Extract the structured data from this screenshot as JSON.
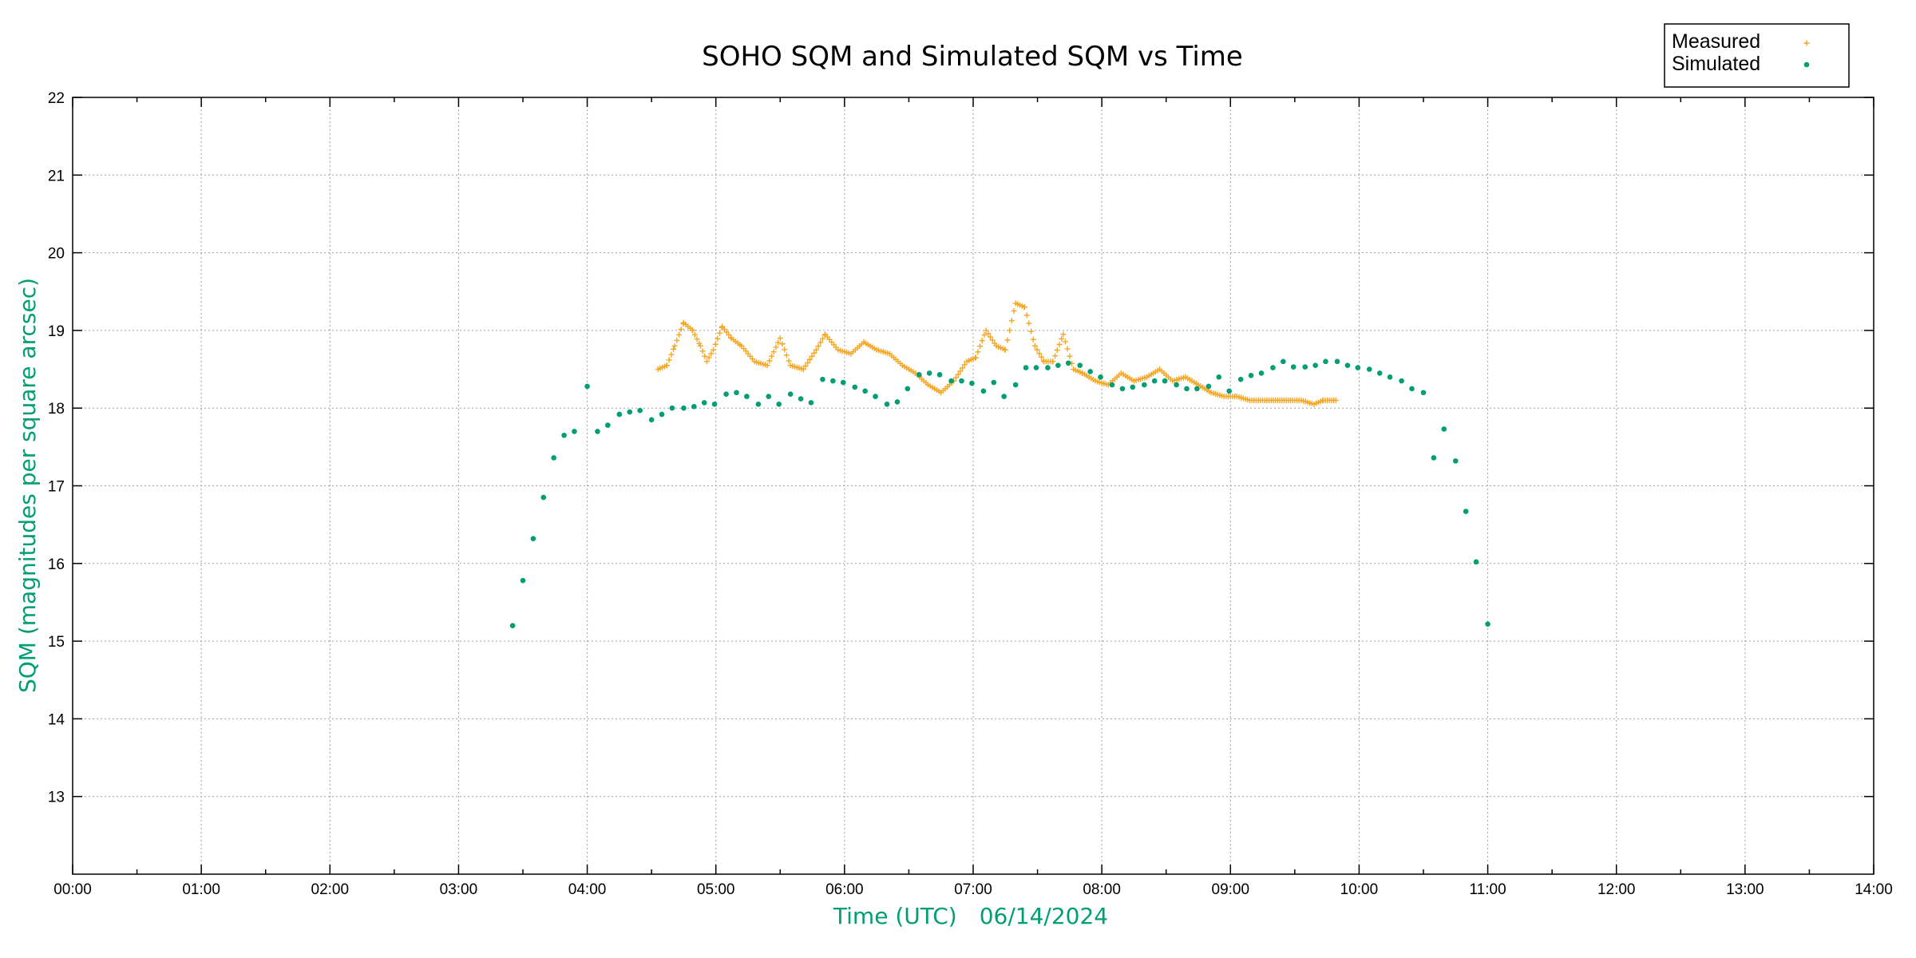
{
  "chart_data": {
    "type": "scatter",
    "title": "SOHO SQM and Simulated SQM vs Time",
    "xlabel": "Time (UTC)",
    "xlabel_date": "06/14/2024",
    "ylabel": "SQM (magnitudes per square arcsec)",
    "xlim": [
      0,
      14
    ],
    "ylim": [
      12,
      22
    ],
    "x_unit": "hours UTC",
    "x_ticks": [
      "00:00",
      "01:00",
      "02:00",
      "03:00",
      "04:00",
      "05:00",
      "06:00",
      "07:00",
      "08:00",
      "09:00",
      "10:00",
      "11:00",
      "12:00",
      "13:00",
      "14:00"
    ],
    "y_ticks": [
      "13",
      "14",
      "15",
      "16",
      "17",
      "18",
      "19",
      "20",
      "21",
      "22"
    ],
    "grid": true,
    "legend_position": "top-right",
    "colors": {
      "measured": "#f5a623",
      "simulated": "#009e73",
      "axis_label": "#009e73"
    },
    "series": [
      {
        "name": "Measured",
        "marker": "plus",
        "control_points": [
          [
            4.55,
            18.5
          ],
          [
            4.62,
            18.55
          ],
          [
            4.68,
            18.8
          ],
          [
            4.75,
            19.1
          ],
          [
            4.82,
            19.0
          ],
          [
            4.88,
            18.8
          ],
          [
            4.93,
            18.6
          ],
          [
            4.98,
            18.75
          ],
          [
            5.05,
            19.05
          ],
          [
            5.12,
            18.9
          ],
          [
            5.2,
            18.8
          ],
          [
            5.3,
            18.6
          ],
          [
            5.4,
            18.55
          ],
          [
            5.5,
            18.9
          ],
          [
            5.58,
            18.55
          ],
          [
            5.68,
            18.5
          ],
          [
            5.78,
            18.75
          ],
          [
            5.85,
            18.95
          ],
          [
            5.95,
            18.75
          ],
          [
            6.05,
            18.7
          ],
          [
            6.15,
            18.85
          ],
          [
            6.25,
            18.75
          ],
          [
            6.35,
            18.7
          ],
          [
            6.45,
            18.55
          ],
          [
            6.55,
            18.45
          ],
          [
            6.65,
            18.3
          ],
          [
            6.75,
            18.2
          ],
          [
            6.85,
            18.35
          ],
          [
            6.95,
            18.6
          ],
          [
            7.02,
            18.65
          ],
          [
            7.1,
            19.0
          ],
          [
            7.18,
            18.8
          ],
          [
            7.25,
            18.75
          ],
          [
            7.33,
            19.35
          ],
          [
            7.4,
            19.3
          ],
          [
            7.48,
            18.8
          ],
          [
            7.55,
            18.6
          ],
          [
            7.62,
            18.6
          ],
          [
            7.7,
            18.95
          ],
          [
            7.78,
            18.5
          ],
          [
            7.85,
            18.45
          ],
          [
            7.95,
            18.35
          ],
          [
            8.05,
            18.3
          ],
          [
            8.15,
            18.45
          ],
          [
            8.25,
            18.35
          ],
          [
            8.35,
            18.4
          ],
          [
            8.45,
            18.5
          ],
          [
            8.55,
            18.35
          ],
          [
            8.65,
            18.4
          ],
          [
            8.75,
            18.3
          ],
          [
            8.85,
            18.2
          ],
          [
            8.95,
            18.15
          ],
          [
            9.05,
            18.15
          ],
          [
            9.15,
            18.1
          ],
          [
            9.25,
            18.1
          ],
          [
            9.35,
            18.1
          ],
          [
            9.45,
            18.1
          ],
          [
            9.55,
            18.1
          ],
          [
            9.65,
            18.05
          ],
          [
            9.72,
            18.1
          ],
          [
            9.82,
            18.1
          ]
        ]
      },
      {
        "name": "Simulated",
        "marker": "dot",
        "points": [
          [
            3.42,
            15.2
          ],
          [
            3.5,
            15.78
          ],
          [
            3.58,
            16.32
          ],
          [
            3.66,
            16.85
          ],
          [
            3.74,
            17.36
          ],
          [
            3.82,
            17.65
          ],
          [
            3.9,
            17.7
          ],
          [
            4.0,
            18.28
          ],
          [
            4.08,
            17.7
          ],
          [
            4.16,
            17.78
          ],
          [
            4.25,
            17.92
          ],
          [
            4.33,
            17.95
          ],
          [
            4.41,
            17.97
          ],
          [
            4.5,
            17.85
          ],
          [
            4.58,
            17.92
          ],
          [
            4.66,
            18.0
          ],
          [
            4.75,
            18.0
          ],
          [
            4.83,
            18.02
          ],
          [
            4.91,
            18.07
          ],
          [
            4.99,
            18.05
          ],
          [
            5.08,
            18.18
          ],
          [
            5.16,
            18.2
          ],
          [
            5.24,
            18.15
          ],
          [
            5.33,
            18.05
          ],
          [
            5.41,
            18.15
          ],
          [
            5.49,
            18.05
          ],
          [
            5.58,
            18.18
          ],
          [
            5.66,
            18.12
          ],
          [
            5.74,
            18.07
          ],
          [
            5.83,
            18.37
          ],
          [
            5.91,
            18.35
          ],
          [
            5.99,
            18.33
          ],
          [
            6.08,
            18.27
          ],
          [
            6.16,
            18.22
          ],
          [
            6.24,
            18.15
          ],
          [
            6.33,
            18.05
          ],
          [
            6.41,
            18.08
          ],
          [
            6.49,
            18.25
          ],
          [
            6.58,
            18.43
          ],
          [
            6.66,
            18.45
          ],
          [
            6.74,
            18.43
          ],
          [
            6.83,
            18.35
          ],
          [
            6.91,
            18.35
          ],
          [
            6.99,
            18.32
          ],
          [
            7.08,
            18.22
          ],
          [
            7.16,
            18.33
          ],
          [
            7.24,
            18.15
          ],
          [
            7.33,
            18.3
          ],
          [
            7.41,
            18.52
          ],
          [
            7.49,
            18.52
          ],
          [
            7.58,
            18.52
          ],
          [
            7.66,
            18.55
          ],
          [
            7.74,
            18.58
          ],
          [
            7.83,
            18.55
          ],
          [
            7.91,
            18.47
          ],
          [
            7.99,
            18.4
          ],
          [
            8.08,
            18.3
          ],
          [
            8.16,
            18.25
          ],
          [
            8.24,
            18.27
          ],
          [
            8.33,
            18.3
          ],
          [
            8.41,
            18.35
          ],
          [
            8.49,
            18.35
          ],
          [
            8.58,
            18.3
          ],
          [
            8.66,
            18.25
          ],
          [
            8.74,
            18.25
          ],
          [
            8.83,
            18.28
          ],
          [
            8.91,
            18.4
          ],
          [
            8.99,
            18.22
          ],
          [
            9.08,
            18.37
          ],
          [
            9.16,
            18.42
          ],
          [
            9.24,
            18.45
          ],
          [
            9.33,
            18.52
          ],
          [
            9.41,
            18.6
          ],
          [
            9.49,
            18.53
          ],
          [
            9.58,
            18.53
          ],
          [
            9.66,
            18.55
          ],
          [
            9.74,
            18.6
          ],
          [
            9.83,
            18.6
          ],
          [
            9.91,
            18.55
          ],
          [
            9.99,
            18.52
          ],
          [
            10.08,
            18.5
          ],
          [
            10.16,
            18.45
          ],
          [
            10.24,
            18.4
          ],
          [
            10.33,
            18.35
          ],
          [
            10.41,
            18.25
          ],
          [
            10.5,
            18.2
          ],
          [
            10.58,
            17.36
          ],
          [
            10.66,
            17.73
          ],
          [
            10.75,
            17.32
          ],
          [
            10.83,
            16.67
          ],
          [
            10.91,
            16.02
          ],
          [
            11.0,
            15.22
          ]
        ]
      }
    ]
  }
}
